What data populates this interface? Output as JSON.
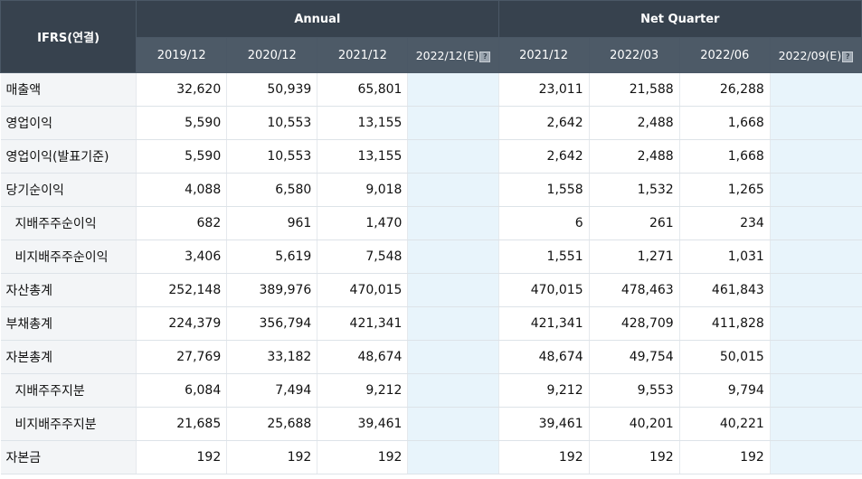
{
  "header": {
    "label": "IFRS(연결)",
    "annual": "Annual",
    "quarter": "Net Quarter",
    "annual_periods": [
      "2019/12",
      "2020/12",
      "2021/12",
      "2022/12(E)"
    ],
    "quarter_periods": [
      "2021/12",
      "2022/03",
      "2022/06",
      "2022/09(E)"
    ],
    "help_glyph": "?"
  },
  "rows": [
    {
      "label": "매출액",
      "annual": [
        "32,620",
        "50,939",
        "65,801",
        ""
      ],
      "quarter": [
        "23,011",
        "21,588",
        "26,288",
        ""
      ]
    },
    {
      "label": "영업이익",
      "annual": [
        "5,590",
        "10,553",
        "13,155",
        ""
      ],
      "quarter": [
        "2,642",
        "2,488",
        "1,668",
        ""
      ]
    },
    {
      "label": "영업이익(발표기준)",
      "annual": [
        "5,590",
        "10,553",
        "13,155",
        ""
      ],
      "quarter": [
        "2,642",
        "2,488",
        "1,668",
        ""
      ]
    },
    {
      "label": "당기순이익",
      "annual": [
        "4,088",
        "6,580",
        "9,018",
        ""
      ],
      "quarter": [
        "1,558",
        "1,532",
        "1,265",
        ""
      ]
    },
    {
      "label": "지배주주순이익",
      "annual": [
        "682",
        "961",
        "1,470",
        ""
      ],
      "quarter": [
        "6",
        "261",
        "234",
        ""
      ]
    },
    {
      "label": "비지배주주순이익",
      "annual": [
        "3,406",
        "5,619",
        "7,548",
        ""
      ],
      "quarter": [
        "1,551",
        "1,271",
        "1,031",
        ""
      ]
    },
    {
      "label": "자산총계",
      "annual": [
        "252,148",
        "389,976",
        "470,015",
        ""
      ],
      "quarter": [
        "470,015",
        "478,463",
        "461,843",
        ""
      ]
    },
    {
      "label": "부채총계",
      "annual": [
        "224,379",
        "356,794",
        "421,341",
        ""
      ],
      "quarter": [
        "421,341",
        "428,709",
        "411,828",
        ""
      ]
    },
    {
      "label": "자본총계",
      "annual": [
        "27,769",
        "33,182",
        "48,674",
        ""
      ],
      "quarter": [
        "48,674",
        "49,754",
        "50,015",
        ""
      ]
    },
    {
      "label": "지배주주지분",
      "annual": [
        "6,084",
        "7,494",
        "9,212",
        ""
      ],
      "quarter": [
        "9,212",
        "9,553",
        "9,794",
        ""
      ]
    },
    {
      "label": "비지배주주지분",
      "annual": [
        "21,685",
        "25,688",
        "39,461",
        ""
      ],
      "quarter": [
        "39,461",
        "40,201",
        "40,221",
        ""
      ]
    },
    {
      "label": "자본금",
      "annual": [
        "192",
        "192",
        "192",
        ""
      ],
      "quarter": [
        "192",
        "192",
        "192",
        ""
      ]
    }
  ]
}
